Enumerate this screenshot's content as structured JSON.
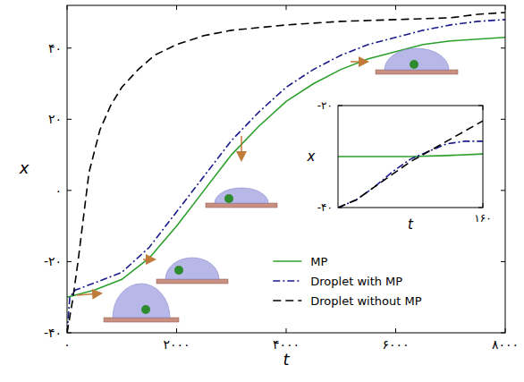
{
  "chart_data": [
    {
      "type": "line",
      "x_label": "t",
      "y_label": "x",
      "xlim": [
        0,
        8000
      ],
      "ylim": [
        -40,
        52
      ],
      "xticks": [
        {
          "value": 0,
          "label": "۰"
        },
        {
          "value": 2000,
          "label": "۲۰۰۰"
        },
        {
          "value": 4000,
          "label": "۴۰۰۰"
        },
        {
          "value": 6000,
          "label": "۶۰۰۰"
        },
        {
          "value": 8000,
          "label": "۸۰۰۰"
        }
      ],
      "yticks": [
        {
          "value": -40,
          "label": "-۴۰"
        },
        {
          "value": -20,
          "label": "-۲۰"
        },
        {
          "value": 0,
          "label": "۰"
        },
        {
          "value": 20,
          "label": "۲۰"
        },
        {
          "value": 40,
          "label": "۴۰"
        }
      ],
      "legend": "lower right",
      "series": [
        {
          "name": "MP",
          "color": "#2ca02c",
          "line_style": "solid",
          "x": [
            0,
            500,
            1000,
            1500,
            2000,
            2500,
            3000,
            3500,
            4000,
            4500,
            5000,
            5500,
            6000,
            6500,
            7000,
            7500,
            8000
          ],
          "values": [
            -30,
            -28,
            -25,
            -19,
            -10,
            0,
            10,
            18,
            25,
            30,
            34,
            37,
            39,
            41,
            42,
            42.5,
            43
          ]
        },
        {
          "name": "Droplet with MP",
          "color": "#1a1a8c",
          "line_style": "dashdot",
          "x": [
            0,
            50,
            150,
            500,
            1000,
            1500,
            2000,
            2500,
            3000,
            3500,
            4000,
            4500,
            5000,
            5500,
            6000,
            6500,
            7000,
            7500,
            8000
          ],
          "values": [
            -40,
            -30,
            -28,
            -26,
            -23,
            -16,
            -6,
            4,
            14,
            22,
            29,
            34,
            38,
            41,
            43,
            45,
            46.5,
            47.5,
            48
          ]
        },
        {
          "name": "Droplet without MP",
          "color": "#000000",
          "line_style": "dashed",
          "x": [
            0,
            100,
            200,
            400,
            600,
            800,
            1000,
            1300,
            1600,
            2000,
            2500,
            3000,
            4000,
            5000,
            6000,
            7000,
            7500,
            8000
          ],
          "values": [
            -40,
            -31,
            -20,
            5,
            17,
            24,
            29,
            34,
            38,
            41,
            43.5,
            45,
            46.5,
            47.5,
            48,
            48.5,
            49.5,
            50
          ]
        }
      ]
    },
    {
      "type": "line",
      "x_label": "t",
      "y_label": "x",
      "xlim": [
        0,
        160
      ],
      "ylim": [
        -40,
        -20
      ],
      "xticks": [
        {
          "value": 160,
          "label": "۱۶۰"
        }
      ],
      "yticks": [
        {
          "value": -40,
          "label": "-۴۰"
        },
        {
          "value": -20,
          "label": "-۲۰"
        }
      ],
      "series": [
        {
          "name": "MP",
          "color": "#2ca02c",
          "line_style": "solid",
          "x": [
            0,
            40,
            80,
            120,
            160
          ],
          "values": [
            -30,
            -30,
            -30,
            -29.8,
            -29.5
          ]
        },
        {
          "name": "Droplet with MP",
          "color": "#1a1a8c",
          "line_style": "dashdot",
          "x": [
            0,
            20,
            40,
            60,
            80,
            100,
            120,
            140,
            160
          ],
          "values": [
            -40,
            -38.5,
            -36,
            -33,
            -30.5,
            -29,
            -27.5,
            -27,
            -27
          ]
        },
        {
          "name": "Droplet without MP",
          "color": "#000000",
          "line_style": "dashed",
          "x": [
            0,
            20,
            40,
            60,
            80,
            100,
            120,
            140,
            160
          ],
          "values": [
            -40,
            -38.5,
            -36,
            -33.5,
            -31,
            -29,
            -27,
            -25,
            -23
          ]
        }
      ]
    }
  ]
}
